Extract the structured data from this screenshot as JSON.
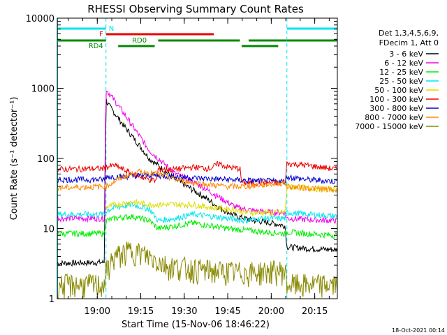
{
  "chart_data": {
    "type": "line",
    "title": "RHESSI Observing Summary Count Rates",
    "xlabel": "Start Time (15-Nov-06 18:46:22)",
    "ylabel": "Count Rate (s⁻¹ detector⁻¹)",
    "y_scale": "log",
    "ylim": [
      1,
      10000
    ],
    "xlim_minutes": [
      18.77,
      20.38
    ],
    "x_tick_labels": [
      "19:00",
      "19:15",
      "19:30",
      "19:45",
      "20:00",
      "20:15"
    ],
    "x_tick_values": [
      19.0,
      19.25,
      19.5,
      19.75,
      20.0,
      20.25
    ],
    "y_tick_labels": [
      "1",
      "10",
      "100",
      "1000",
      "10000"
    ],
    "y_tick_values": [
      1,
      10,
      100,
      1000,
      10000
    ],
    "legend_header": [
      "Det 1,3,4,5,6,9,",
      "FDecim 1, Att 0"
    ],
    "legend_position": "right",
    "footer_date": "18-Oct-2021 00:14",
    "flags": [
      {
        "label": "N",
        "color": "#00e5ee",
        "segments": [
          [
            18.77,
            19.05
          ],
          [
            20.09,
            20.38
          ]
        ]
      },
      {
        "label": "F",
        "color": "#ee0000",
        "segments": [
          [
            19.05,
            19.67
          ]
        ]
      },
      {
        "label": "RD0",
        "color": "#008800",
        "segments": [
          [
            18.77,
            19.05
          ],
          [
            19.35,
            19.82
          ],
          [
            19.87,
            20.38
          ]
        ]
      },
      {
        "label": "RD4",
        "color": "#008800",
        "segments": [
          [
            19.12,
            19.33
          ],
          [
            19.83,
            20.04
          ]
        ]
      }
    ],
    "vlines": [
      19.05,
      20.09,
      20.38
    ],
    "series": [
      {
        "name": "3 - 6 keV",
        "color": "#000000",
        "x": [
          18.77,
          19.04,
          19.05,
          19.06,
          19.15,
          19.3,
          19.45,
          19.6,
          19.7,
          19.8,
          19.9,
          20.0,
          20.08,
          20.09,
          20.2,
          20.38
        ],
        "values": [
          3.2,
          3.3,
          700,
          600,
          300,
          100,
          50,
          30,
          20,
          15,
          13,
          12,
          11,
          5.5,
          5.2,
          5.0
        ]
      },
      {
        "name": "6 - 12 keV",
        "color": "#ee00ee",
        "x": [
          18.77,
          19.04,
          19.05,
          19.06,
          19.15,
          19.3,
          19.45,
          19.6,
          19.7,
          19.8,
          19.9,
          20.0,
          20.08,
          20.09,
          20.2,
          20.38
        ],
        "values": [
          14,
          14,
          1000,
          900,
          450,
          130,
          60,
          40,
          28,
          20,
          18,
          17,
          17,
          14,
          13.5,
          13
        ]
      },
      {
        "name": "12 - 25 keV",
        "color": "#00ee00",
        "x": [
          18.77,
          19.04,
          19.05,
          19.1,
          19.2,
          19.3,
          19.35,
          19.45,
          19.55,
          19.65,
          19.75,
          19.85,
          19.95,
          20.08,
          20.09,
          20.2,
          20.38
        ],
        "values": [
          8.5,
          8.5,
          13,
          14,
          15,
          13,
          10,
          11,
          12,
          11,
          10,
          9.5,
          9,
          8.5,
          9,
          8.5,
          8
        ]
      },
      {
        "name": "25 - 50 keV",
        "color": "#00e5ee",
        "x": [
          18.77,
          19.04,
          19.05,
          19.1,
          19.2,
          19.3,
          19.35,
          19.45,
          19.55,
          19.65,
          19.75,
          19.85,
          19.95,
          20.08,
          20.09,
          20.2,
          20.38
        ],
        "values": [
          16,
          16,
          18,
          20,
          22,
          19,
          13,
          14,
          16,
          15,
          14,
          13,
          14,
          14,
          17,
          16,
          15
        ]
      },
      {
        "name": "50 - 100 keV",
        "color": "#dddd00",
        "x": [
          18.77,
          19.04,
          19.05,
          19.1,
          19.2,
          19.3,
          19.35,
          19.45,
          19.55,
          19.65,
          19.75,
          19.82,
          19.83,
          19.95,
          20.08,
          20.09,
          20.2,
          20.38
        ],
        "values": [
          0,
          0,
          20,
          22,
          24,
          22,
          22,
          22,
          22,
          20,
          19,
          18,
          17,
          17,
          17,
          40,
          38,
          36
        ]
      },
      {
        "name": "100 - 300 keV",
        "color": "#ee0000",
        "x": [
          18.77,
          19.04,
          19.05,
          19.1,
          19.2,
          19.3,
          19.34,
          19.35,
          19.45,
          19.55,
          19.65,
          19.7,
          19.75,
          19.82,
          19.83,
          19.95,
          20.08,
          20.09,
          20.2,
          20.38
        ],
        "values": [
          70,
          72,
          75,
          80,
          60,
          50,
          48,
          70,
          70,
          75,
          72,
          85,
          75,
          72,
          45,
          45,
          45,
          85,
          80,
          70
        ]
      },
      {
        "name": "300 - 800 keV",
        "color": "#0000cc",
        "x": [
          18.77,
          19.04,
          19.05,
          19.15,
          19.3,
          19.45,
          19.6,
          19.75,
          19.9,
          20.08,
          20.09,
          20.2,
          20.38
        ],
        "values": [
          50,
          50,
          55,
          55,
          58,
          55,
          52,
          50,
          48,
          47,
          55,
          50,
          47
        ]
      },
      {
        "name": "800 - 7000 keV",
        "color": "#ff8800",
        "x": [
          18.77,
          19.04,
          19.05,
          19.15,
          19.25,
          19.35,
          19.45,
          19.55,
          19.65,
          19.75,
          19.85,
          19.95,
          20.08,
          20.09,
          20.2,
          20.38
        ],
        "values": [
          38,
          40,
          40,
          55,
          65,
          60,
          50,
          45,
          42,
          40,
          40,
          42,
          45,
          40,
          38,
          35
        ]
      },
      {
        "name": "7000 - 15000 keV",
        "color": "#888800",
        "x": [
          18.77,
          19.04,
          19.05,
          19.1,
          19.2,
          19.3,
          19.4,
          19.5,
          19.6,
          19.7,
          19.8,
          19.9,
          20.0,
          20.08,
          20.09,
          20.2,
          20.38
        ],
        "values": [
          1.6,
          1.6,
          2.5,
          4,
          5,
          4,
          3,
          2.8,
          2.6,
          2.5,
          2.4,
          2.4,
          2.5,
          2.5,
          1.6,
          1.6,
          1.6
        ]
      }
    ]
  }
}
